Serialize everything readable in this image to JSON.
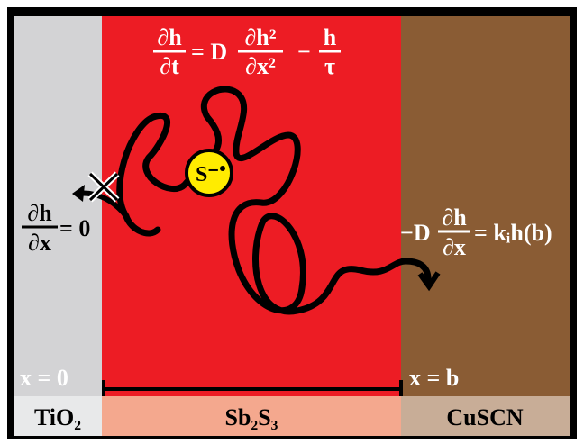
{
  "layers": [
    {
      "label": "TiO₂"
    },
    {
      "label": "Sb₂S₃"
    },
    {
      "label": "CuSCN"
    }
  ],
  "positions": {
    "left": "x = 0",
    "right": "x = b"
  },
  "ion": "S⁻",
  "diffusion_equation": {
    "lhs_num": "∂h",
    "lhs_den": "∂t",
    "op1": "= D",
    "mid_num": "∂h²",
    "mid_den": "∂x²",
    "op2": "−",
    "rhs_num": "h",
    "rhs_den": "τ"
  },
  "left_boundary": {
    "num": "∂h",
    "den": "∂x",
    "rhs": "= 0"
  },
  "right_boundary": {
    "lhs": "−D",
    "num": "∂h",
    "den": "∂x",
    "rhs": "= kᵢh(b)"
  }
}
